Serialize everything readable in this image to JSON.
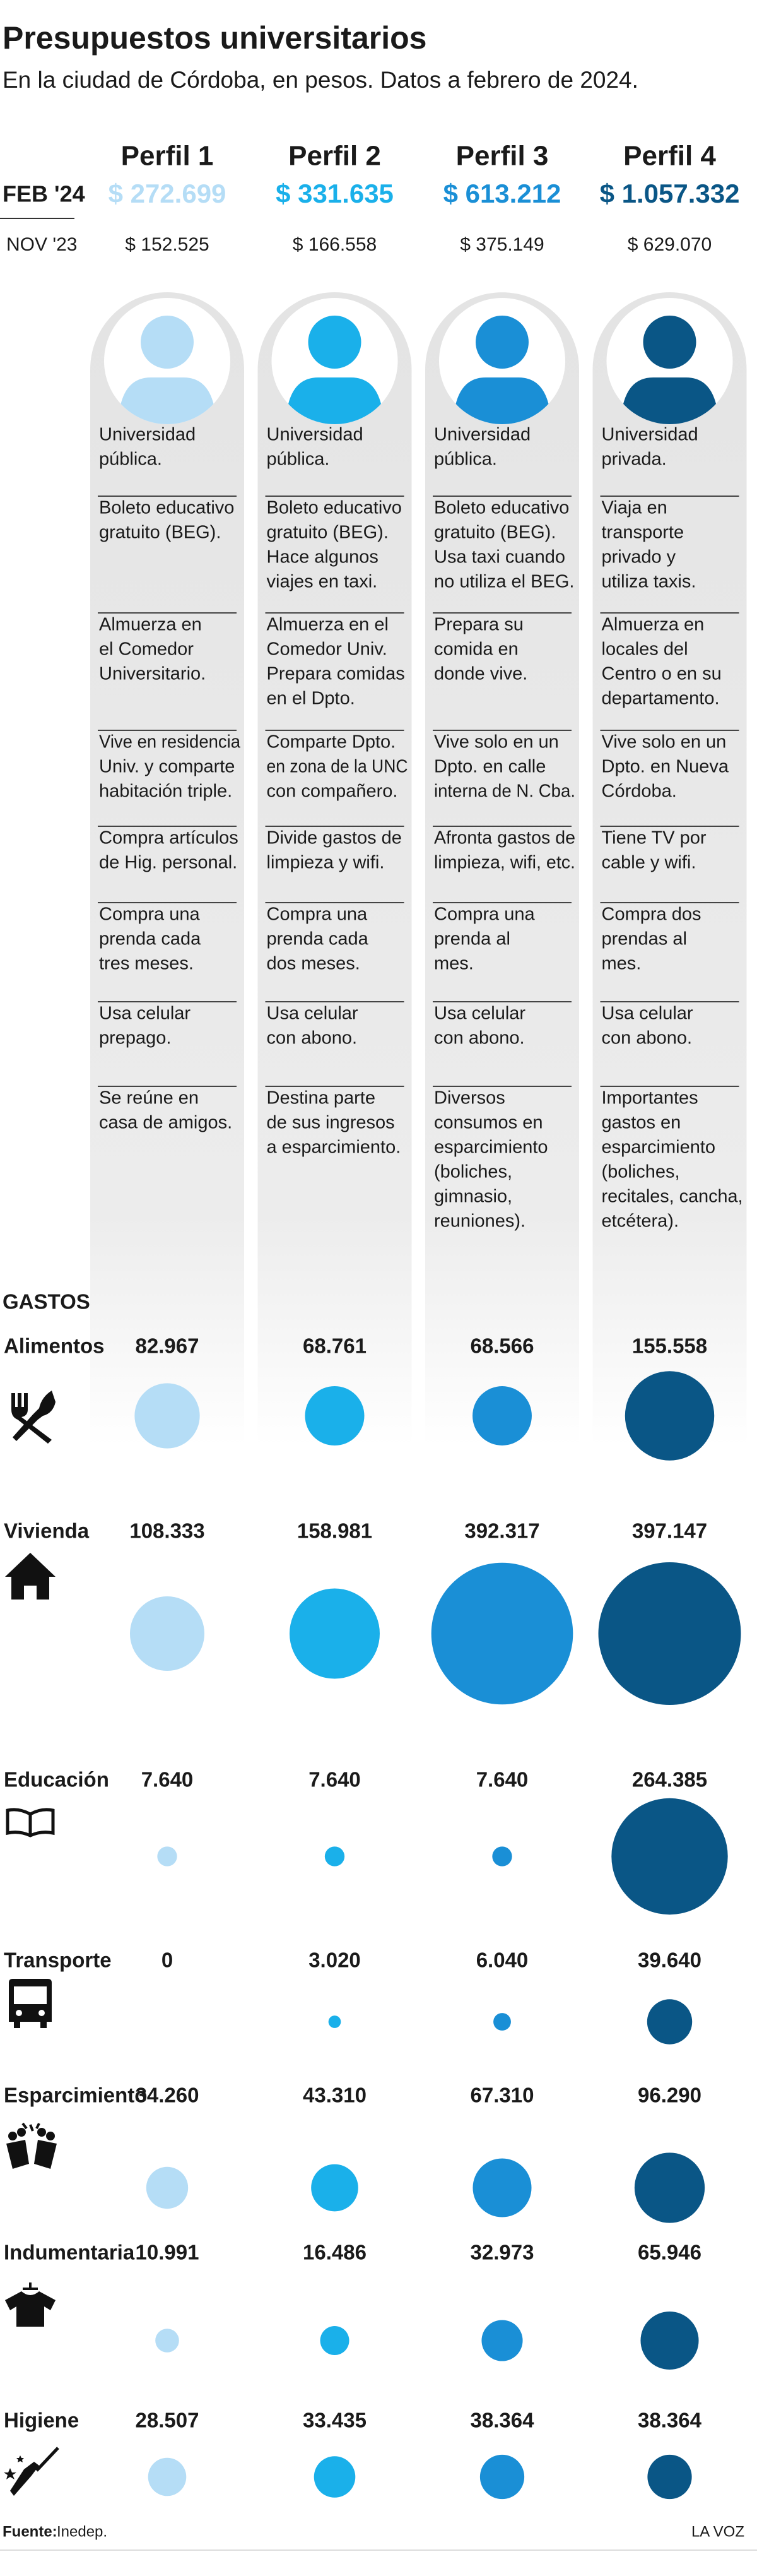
{
  "title": "Presupuestos universitarios",
  "subtitle": "En la ciudad de Córdoba, en pesos. Datos a febrero de 2024.",
  "feb_label": "FEB '24",
  "nov_label": "NOV '23",
  "profiles": [
    {
      "name": "Perfil 1",
      "color": "#b5ddf6",
      "price_color": "#b5ddf6",
      "feb24": "$ 272.699",
      "nov23": "$ 152.525",
      "descriptions": [
        [
          "Universidad",
          "pública."
        ],
        [
          "Boleto educativo",
          "gratuito (BEG)."
        ],
        [
          "Almuerza en",
          "el Comedor",
          "Universitario."
        ],
        [
          "Vive en residencia",
          "Univ. y comparte",
          "habitación triple."
        ],
        [
          "Compra artículos",
          "de Hig. personal."
        ],
        [
          "Compra una",
          "prenda cada",
          "tres meses."
        ],
        [
          "Usa celular",
          "prepago."
        ],
        [
          "Se reúne en",
          "casa de amigos."
        ]
      ]
    },
    {
      "name": "Perfil 2",
      "color": "#1ab0ea",
      "price_color": "#1ab0ea",
      "feb24": "$ 331.635",
      "nov23": "$ 166.558",
      "descriptions": [
        [
          "Universidad",
          "pública."
        ],
        [
          "Boleto educativo",
          "gratuito (BEG).",
          "Hace algunos",
          "viajes en taxi."
        ],
        [
          "Almuerza en el",
          "Comedor Univ.",
          "Prepara comidas",
          "en el Dpto."
        ],
        [
          "Comparte Dpto.",
          "en zona de la UNC",
          "con compañero."
        ],
        [
          "Divide gastos de",
          "limpieza y wifi."
        ],
        [
          "Compra una",
          "prenda cada",
          "dos meses."
        ],
        [
          "Usa celular",
          "con abono."
        ],
        [
          "Destina parte",
          "de sus ingresos",
          "a esparcimiento."
        ]
      ]
    },
    {
      "name": "Perfil 3",
      "color": "#1a8fd6",
      "price_color": "#1a8fd6",
      "feb24": "$ 613.212",
      "nov23": "$ 375.149",
      "descriptions": [
        [
          "Universidad",
          "pública."
        ],
        [
          "Boleto educativo",
          "gratuito (BEG).",
          "Usa taxi cuando",
          "no utiliza el BEG."
        ],
        [
          "Prepara su",
          "comida en",
          "donde vive."
        ],
        [
          "Vive solo en un",
          "Dpto. en calle",
          "interna de N. Cba."
        ],
        [
          "Afronta gastos de",
          "limpieza, wifi, etc."
        ],
        [
          "Compra una",
          "prenda al",
          "mes."
        ],
        [
          "Usa celular",
          "con abono."
        ],
        [
          "Diversos",
          "consumos en",
          "esparcimiento",
          "(boliches,",
          "gimnasio,",
          "reuniones)."
        ]
      ]
    },
    {
      "name": "Perfil 4",
      "color": "#0a5686",
      "price_color": "#0a5686",
      "feb24": "$ 1.057.332",
      "nov23": "$ 629.070",
      "descriptions": [
        [
          "Universidad",
          "privada."
        ],
        [
          "Viaja en",
          "transporte",
          "privado y",
          "utiliza taxis."
        ],
        [
          "Almuerza en",
          "locales del",
          "Centro o en su",
          "departamento."
        ],
        [
          "Vive solo en un",
          "Dpto. en Nueva",
          "Córdoba."
        ],
        [
          "Tiene TV por",
          "cable y wifi."
        ],
        [
          "Compra dos",
          "prendas al",
          "mes."
        ],
        [
          "Usa celular",
          "con abono."
        ],
        [
          "Importantes",
          "gastos en",
          "esparcimiento",
          "(boliches,",
          "recitales, cancha,",
          "etcétera)."
        ]
      ]
    }
  ],
  "gastos_label": "GASTOS",
  "expenses": [
    {
      "name": "Alimentos",
      "values": [
        82967,
        68761,
        68566,
        155558
      ],
      "value_labels": [
        "82.967",
        "68.761",
        "68.566",
        "155.558"
      ]
    },
    {
      "name": "Vivienda",
      "values": [
        108333,
        158981,
        392317,
        397147
      ],
      "value_labels": [
        "108.333",
        "158.981",
        "392.317",
        "397.147"
      ]
    },
    {
      "name": "Educación",
      "values": [
        7640,
        7640,
        7640,
        264385
      ],
      "value_labels": [
        "7.640",
        "7.640",
        "7.640",
        "264.385"
      ]
    },
    {
      "name": "Transporte",
      "values": [
        0,
        3020,
        6040,
        39640
      ],
      "value_labels": [
        "0",
        "3.020",
        "6.040",
        "39.640"
      ]
    },
    {
      "name": "Esparcimiento",
      "values": [
        34260,
        43310,
        67310,
        96290
      ],
      "value_labels": [
        "34.260",
        "43.310",
        "67.310",
        "96.290"
      ]
    },
    {
      "name": "Indumentaria",
      "values": [
        10991,
        16486,
        32973,
        65946
      ],
      "value_labels": [
        "10.991",
        "16.486",
        "32.973",
        "65.946"
      ]
    },
    {
      "name": "Higiene",
      "values": [
        28507,
        33435,
        38364,
        38364
      ],
      "value_labels": [
        "28.507",
        "33.435",
        "38.364",
        "38.364"
      ]
    }
  ],
  "source_label": "Fuente:",
  "source": "Inedep.",
  "brand": "LA VOZ"
}
